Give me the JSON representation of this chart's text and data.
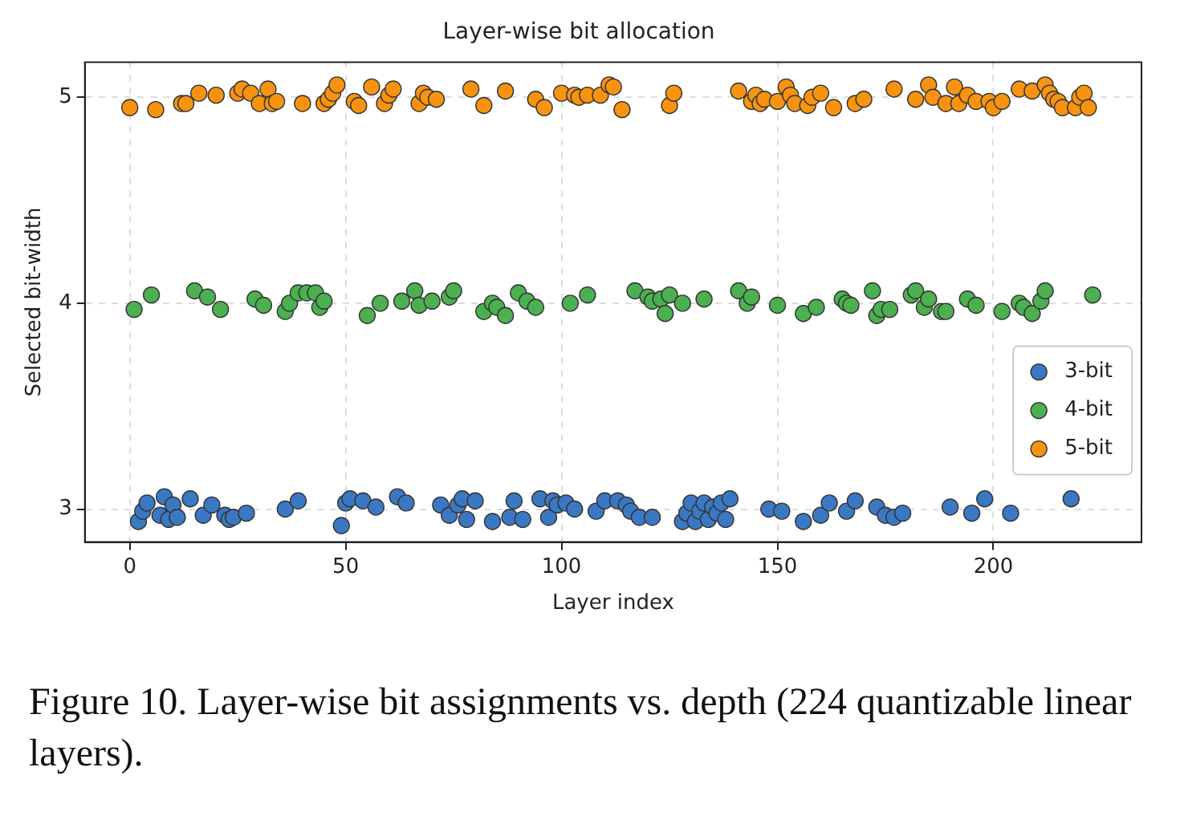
{
  "chart_data": {
    "type": "scatter",
    "title": "Layer-wise bit allocation",
    "xlabel": "Layer index",
    "ylabel": "Selected bit-width",
    "xlim": [
      -10.4,
      234.3
    ],
    "ylim": [
      2.84,
      5.17
    ],
    "xticks": [
      0,
      50,
      100,
      150,
      200
    ],
    "yticks": [
      3,
      4,
      5
    ],
    "grid": true,
    "legend": "bottom right",
    "marker": "circle",
    "series": [
      {
        "name": "3-bit",
        "color": "#3b78c3",
        "x": [
          2,
          3,
          4,
          7,
          8,
          9,
          10,
          11,
          14,
          17,
          19,
          22,
          23,
          24,
          27,
          36,
          39,
          49,
          50,
          51,
          54,
          57,
          62,
          64,
          72,
          74,
          76,
          77,
          78,
          80,
          84,
          88,
          89,
          91,
          95,
          97,
          98,
          99,
          101,
          103,
          108,
          110,
          113,
          115,
          116,
          118,
          121,
          128,
          129,
          130,
          131,
          132,
          133,
          134,
          135,
          136,
          137,
          138,
          139,
          148,
          151,
          156,
          160,
          162,
          166,
          168,
          173,
          175,
          177,
          179,
          190,
          195,
          198,
          204,
          218
        ],
        "values": [
          2.94,
          2.99,
          3.03,
          2.97,
          3.06,
          2.95,
          3.02,
          2.96,
          3.05,
          2.97,
          3.02,
          2.97,
          2.95,
          2.96,
          2.98,
          3.0,
          3.04,
          2.92,
          3.03,
          3.05,
          3.04,
          3.01,
          3.06,
          3.03,
          3.02,
          2.97,
          3.02,
          3.05,
          2.95,
          3.04,
          2.94,
          2.96,
          3.04,
          2.95,
          3.05,
          2.96,
          3.04,
          3.02,
          3.03,
          3.0,
          2.99,
          3.04,
          3.04,
          3.02,
          2.99,
          2.96,
          2.96,
          2.94,
          2.98,
          3.03,
          2.94,
          2.99,
          3.03,
          2.95,
          3.01,
          2.98,
          3.03,
          2.95,
          3.05,
          3.0,
          2.99,
          2.94,
          2.97,
          3.03,
          2.99,
          3.04,
          3.01,
          2.97,
          2.96,
          2.98,
          3.01,
          2.98,
          3.05,
          2.98,
          3.05
        ]
      },
      {
        "name": "4-bit",
        "color": "#4caf50",
        "x": [
          1,
          5,
          15,
          18,
          21,
          29,
          31,
          36,
          37,
          39,
          41,
          43,
          44,
          45,
          55,
          58,
          63,
          66,
          67,
          70,
          74,
          75,
          82,
          84,
          85,
          87,
          90,
          92,
          94,
          102,
          106,
          117,
          120,
          121,
          123,
          124,
          125,
          128,
          133,
          141,
          143,
          144,
          150,
          156,
          159,
          165,
          166,
          167,
          172,
          173,
          174,
          176,
          181,
          182,
          184,
          185,
          188,
          189,
          194,
          196,
          202,
          206,
          207,
          209,
          211,
          212,
          223
        ],
        "values": [
          3.97,
          4.04,
          4.06,
          4.03,
          3.97,
          4.02,
          3.99,
          3.96,
          4.0,
          4.05,
          4.05,
          4.05,
          3.98,
          4.01,
          3.94,
          4.0,
          4.01,
          4.06,
          3.99,
          4.01,
          4.03,
          4.06,
          3.96,
          4.0,
          3.98,
          3.94,
          4.05,
          4.01,
          3.98,
          4.0,
          4.04,
          4.06,
          4.03,
          4.01,
          4.02,
          3.95,
          4.04,
          4.0,
          4.02,
          4.06,
          4.0,
          4.03,
          3.99,
          3.95,
          3.98,
          4.02,
          4.0,
          3.99,
          4.06,
          3.94,
          3.97,
          3.97,
          4.04,
          4.06,
          3.98,
          4.02,
          3.96,
          3.96,
          4.02,
          3.99,
          3.96,
          4.0,
          3.98,
          3.95,
          4.01,
          4.06,
          4.04
        ]
      },
      {
        "name": "5-bit",
        "color": "#f7930f",
        "x": [
          0,
          6,
          12,
          13,
          16,
          20,
          25,
          26,
          28,
          30,
          32,
          33,
          34,
          40,
          45,
          46,
          47,
          48,
          52,
          53,
          56,
          59,
          60,
          61,
          67,
          68,
          69,
          71,
          79,
          82,
          87,
          94,
          96,
          100,
          103,
          104,
          106,
          109,
          111,
          112,
          114,
          125,
          126,
          141,
          144,
          145,
          146,
          147,
          150,
          152,
          153,
          154,
          157,
          158,
          160,
          163,
          168,
          170,
          177,
          182,
          185,
          186,
          189,
          191,
          192,
          194,
          196,
          199,
          200,
          202,
          206,
          209,
          212,
          213,
          214,
          215,
          216,
          219,
          220,
          221,
          222
        ],
        "values": [
          4.95,
          4.94,
          4.97,
          4.97,
          5.02,
          5.01,
          5.02,
          5.04,
          5.02,
          4.97,
          5.04,
          4.97,
          4.98,
          4.97,
          4.97,
          4.99,
          5.02,
          5.06,
          4.98,
          4.96,
          5.05,
          4.97,
          5.01,
          5.04,
          4.97,
          5.02,
          5.0,
          4.99,
          5.04,
          4.96,
          5.03,
          4.99,
          4.95,
          5.02,
          5.01,
          5.0,
          5.01,
          5.01,
          5.06,
          5.05,
          4.94,
          4.96,
          5.02,
          5.03,
          4.98,
          5.01,
          4.97,
          4.99,
          4.98,
          5.05,
          5.01,
          4.97,
          4.96,
          5.0,
          5.02,
          4.95,
          4.97,
          4.99,
          5.04,
          4.99,
          5.06,
          5.0,
          4.97,
          5.05,
          4.97,
          5.01,
          4.98,
          4.98,
          4.95,
          4.98,
          5.04,
          5.03,
          5.06,
          5.02,
          4.99,
          4.98,
          4.95,
          4.95,
          5.0,
          5.02,
          4.95
        ]
      }
    ],
    "annotations": [
      "Figure 10. Layer-wise bit assignments vs. depth (224 quantizable linear layers)."
    ]
  }
}
